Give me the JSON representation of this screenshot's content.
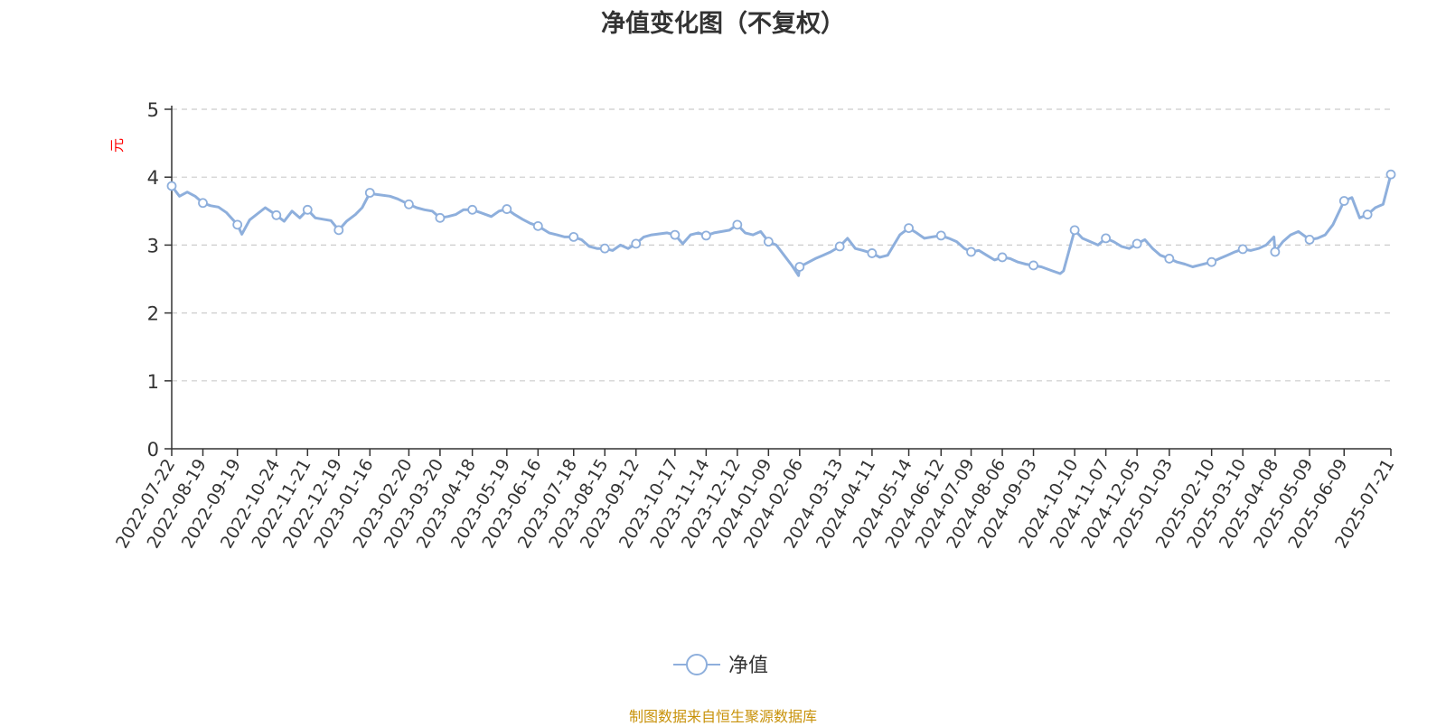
{
  "title": "净值变化图（不复权）",
  "footer": "制图数据来自恒生聚源数据库",
  "colors": {
    "series": "#8eafdc",
    "ylabel": "#ff0000",
    "footer": "#c8920a",
    "grid": "#cccccc"
  },
  "chart_data": {
    "type": "line",
    "title": "净值变化图（不复权）",
    "ylabel": "元",
    "xlabel": "",
    "ylim": [
      0,
      5
    ],
    "yticks": [
      "0",
      "1",
      "2",
      "3",
      "4",
      "5"
    ],
    "grid": "horizontal dashed",
    "legend": "bottom-center",
    "x_tick_labels": [
      "2022-07-22",
      "2022-08-19",
      "2022-09-19",
      "2022-10-24",
      "2022-11-21",
      "2022-12-19",
      "2023-01-16",
      "2023-02-20",
      "2023-03-20",
      "2023-04-18",
      "2023-05-19",
      "2023-06-16",
      "2023-07-18",
      "2023-08-15",
      "2023-09-12",
      "2023-10-17",
      "2023-11-14",
      "2023-12-12",
      "2024-01-09",
      "2024-02-06",
      "2024-03-13",
      "2024-04-11",
      "2024-05-14",
      "2024-06-12",
      "2024-07-09",
      "2024-08-06",
      "2024-09-03",
      "2024-10-10",
      "2024-11-07",
      "2024-12-05",
      "2025-01-03",
      "2025-02-10",
      "2025-03-10",
      "2025-04-08",
      "2025-05-09",
      "2025-06-09",
      "2025-07-21"
    ],
    "series": [
      {
        "name": "净值",
        "color": "#8eafdc",
        "x": [
          "2022-07-22",
          "2022-07-29",
          "2022-08-05",
          "2022-08-12",
          "2022-08-19",
          "2022-08-26",
          "2022-09-02",
          "2022-09-09",
          "2022-09-19",
          "2022-09-23",
          "2022-09-30",
          "2022-10-14",
          "2022-10-24",
          "2022-10-31",
          "2022-11-07",
          "2022-11-14",
          "2022-11-21",
          "2022-11-28",
          "2022-12-05",
          "2022-12-12",
          "2022-12-19",
          "2022-12-26",
          "2023-01-03",
          "2023-01-09",
          "2023-01-16",
          "2023-01-20",
          "2023-02-03",
          "2023-02-10",
          "2023-02-20",
          "2023-02-27",
          "2023-03-06",
          "2023-03-13",
          "2023-03-20",
          "2023-03-27",
          "2023-04-03",
          "2023-04-10",
          "2023-04-18",
          "2023-04-25",
          "2023-05-05",
          "2023-05-12",
          "2023-05-19",
          "2023-05-26",
          "2023-06-02",
          "2023-06-09",
          "2023-06-16",
          "2023-06-26",
          "2023-07-03",
          "2023-07-10",
          "2023-07-18",
          "2023-07-25",
          "2023-08-01",
          "2023-08-08",
          "2023-08-15",
          "2023-08-22",
          "2023-08-29",
          "2023-09-05",
          "2023-09-12",
          "2023-09-19",
          "2023-09-26",
          "2023-10-10",
          "2023-10-17",
          "2023-10-24",
          "2023-10-31",
          "2023-11-07",
          "2023-11-14",
          "2023-11-21",
          "2023-11-28",
          "2023-12-05",
          "2023-12-12",
          "2023-12-19",
          "2023-12-26",
          "2024-01-02",
          "2024-01-09",
          "2024-01-16",
          "2024-01-23",
          "2024-01-30",
          "2024-02-05",
          "2024-02-06",
          "2024-02-20",
          "2024-02-27",
          "2024-03-05",
          "2024-03-13",
          "2024-03-20",
          "2024-03-27",
          "2024-04-03",
          "2024-04-11",
          "2024-04-18",
          "2024-04-25",
          "2024-05-06",
          "2024-05-14",
          "2024-05-21",
          "2024-05-28",
          "2024-06-04",
          "2024-06-12",
          "2024-06-19",
          "2024-06-26",
          "2024-07-03",
          "2024-07-09",
          "2024-07-16",
          "2024-07-23",
          "2024-07-30",
          "2024-08-06",
          "2024-08-13",
          "2024-08-20",
          "2024-08-27",
          "2024-09-03",
          "2024-09-10",
          "2024-09-20",
          "2024-09-27",
          "2024-09-30",
          "2024-10-10",
          "2024-10-17",
          "2024-10-24",
          "2024-10-31",
          "2024-11-07",
          "2024-11-14",
          "2024-11-21",
          "2024-11-28",
          "2024-12-05",
          "2024-12-12",
          "2024-12-19",
          "2024-12-26",
          "2025-01-03",
          "2025-01-10",
          "2025-01-17",
          "2025-01-24",
          "2025-02-10",
          "2025-02-17",
          "2025-02-24",
          "2025-03-03",
          "2025-03-10",
          "2025-03-17",
          "2025-03-24",
          "2025-03-31",
          "2025-04-07",
          "2025-04-08",
          "2025-04-15",
          "2025-04-22",
          "2025-04-29",
          "2025-05-09",
          "2025-05-16",
          "2025-05-23",
          "2025-05-30",
          "2025-06-09",
          "2025-06-16",
          "2025-06-23",
          "2025-06-30",
          "2025-07-07",
          "2025-07-14",
          "2025-07-21"
        ],
        "values": [
          3.87,
          3.72,
          3.78,
          3.72,
          3.62,
          3.58,
          3.56,
          3.48,
          3.3,
          3.16,
          3.37,
          3.55,
          3.44,
          3.35,
          3.5,
          3.4,
          3.52,
          3.4,
          3.38,
          3.36,
          3.22,
          3.35,
          3.45,
          3.55,
          3.77,
          3.75,
          3.72,
          3.68,
          3.6,
          3.55,
          3.52,
          3.5,
          3.4,
          3.42,
          3.45,
          3.52,
          3.52,
          3.48,
          3.42,
          3.5,
          3.53,
          3.45,
          3.38,
          3.32,
          3.28,
          3.18,
          3.15,
          3.12,
          3.12,
          3.08,
          2.98,
          2.95,
          2.95,
          2.92,
          3.0,
          2.95,
          3.02,
          3.12,
          3.15,
          3.18,
          3.15,
          3.02,
          3.15,
          3.18,
          3.14,
          3.18,
          3.2,
          3.22,
          3.3,
          3.18,
          3.15,
          3.2,
          3.05,
          3.0,
          2.85,
          2.7,
          2.55,
          2.68,
          2.8,
          2.85,
          2.9,
          2.98,
          3.1,
          2.95,
          2.92,
          2.88,
          2.82,
          2.85,
          3.15,
          3.25,
          3.18,
          3.1,
          3.12,
          3.14,
          3.1,
          3.05,
          2.95,
          2.9,
          2.92,
          2.85,
          2.78,
          2.82,
          2.8,
          2.75,
          2.72,
          2.7,
          2.68,
          2.62,
          2.58,
          2.62,
          3.22,
          3.1,
          3.05,
          3.0,
          3.1,
          3.05,
          2.98,
          2.95,
          3.02,
          3.08,
          2.95,
          2.85,
          2.8,
          2.75,
          2.72,
          2.68,
          2.75,
          2.8,
          2.85,
          2.9,
          2.94,
          2.92,
          2.95,
          3.0,
          3.12,
          2.9,
          3.05,
          3.15,
          3.2,
          3.08,
          3.1,
          3.15,
          3.3,
          3.65,
          3.7,
          3.4,
          3.45,
          3.55,
          3.6,
          4.04
        ],
        "markers": [
          "2022-07-22",
          "2022-08-19",
          "2022-09-19",
          "2022-10-24",
          "2022-11-21",
          "2022-12-19",
          "2023-01-16",
          "2023-02-20",
          "2023-03-20",
          "2023-04-18",
          "2023-05-19",
          "2023-06-16",
          "2023-07-18",
          "2023-08-15",
          "2023-09-12",
          "2023-10-17",
          "2023-11-14",
          "2023-12-12",
          "2024-01-09",
          "2024-02-06",
          "2024-03-13",
          "2024-04-11",
          "2024-05-14",
          "2024-06-12",
          "2024-07-09",
          "2024-08-06",
          "2024-09-03",
          "2024-10-10",
          "2024-11-07",
          "2024-12-05",
          "2025-01-03",
          "2025-02-10",
          "2025-03-10",
          "2025-04-08",
          "2025-05-09",
          "2025-06-09",
          "2025-06-30",
          "2025-07-21"
        ]
      }
    ]
  }
}
